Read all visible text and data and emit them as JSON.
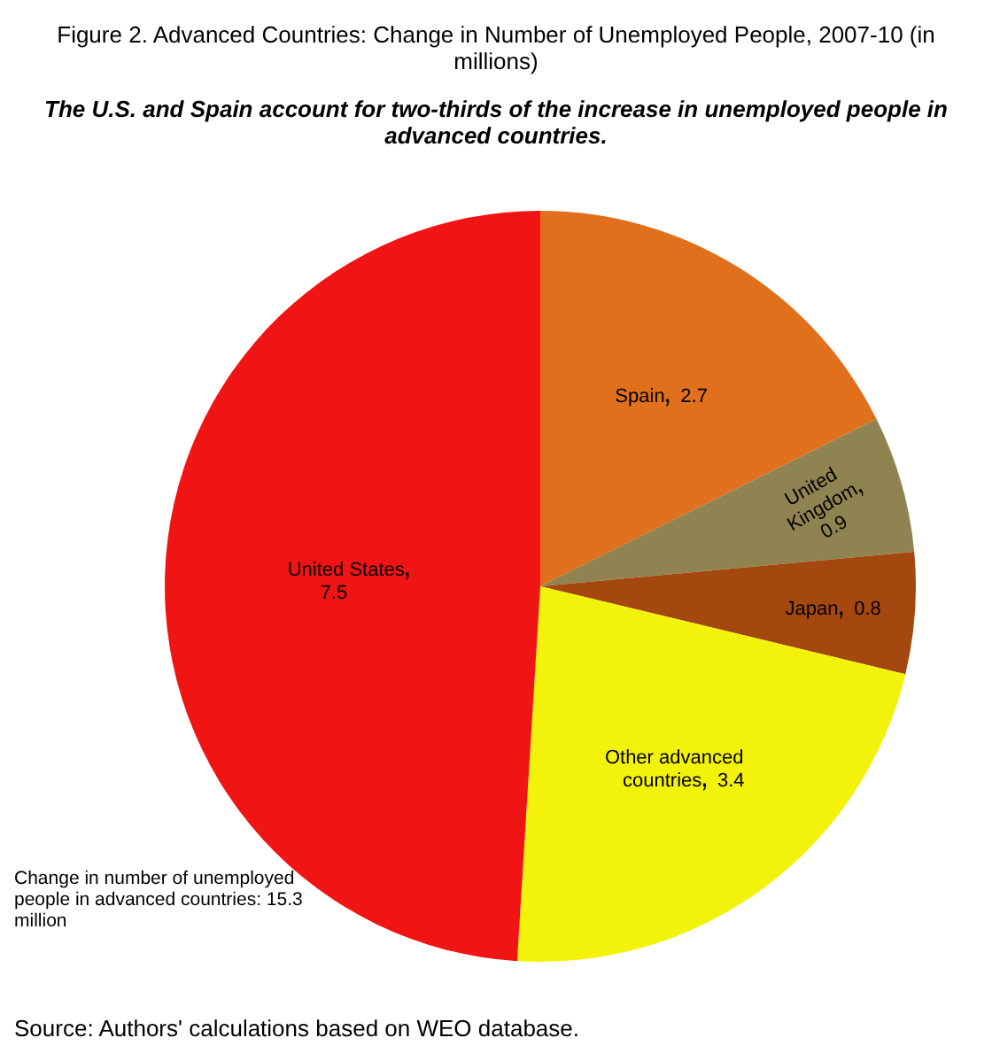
{
  "chart_data": {
    "type": "pie",
    "title": "Figure 2. Advanced Countries: Change in Number of Unemployed People, 2007-10 (in millions)",
    "subtitle": "The U.S. and Spain account for two-thirds of the increase in unemployed people in advanced countries.",
    "categories": [
      "Spain",
      "United Kingdom",
      "Japan",
      "Other advanced countries",
      "United States"
    ],
    "values": [
      2.7,
      0.9,
      0.8,
      3.4,
      7.5
    ],
    "colors": [
      "#e0701c",
      "#8f8451",
      "#a4480f",
      "#f2f20a",
      "#f01414"
    ],
    "data_labels": true,
    "legend": false,
    "annotations": [
      "Change in number of unemployed people in  advanced countries:  15.3 million",
      "Source: Authors' calculations based on WEO database."
    ]
  }
}
